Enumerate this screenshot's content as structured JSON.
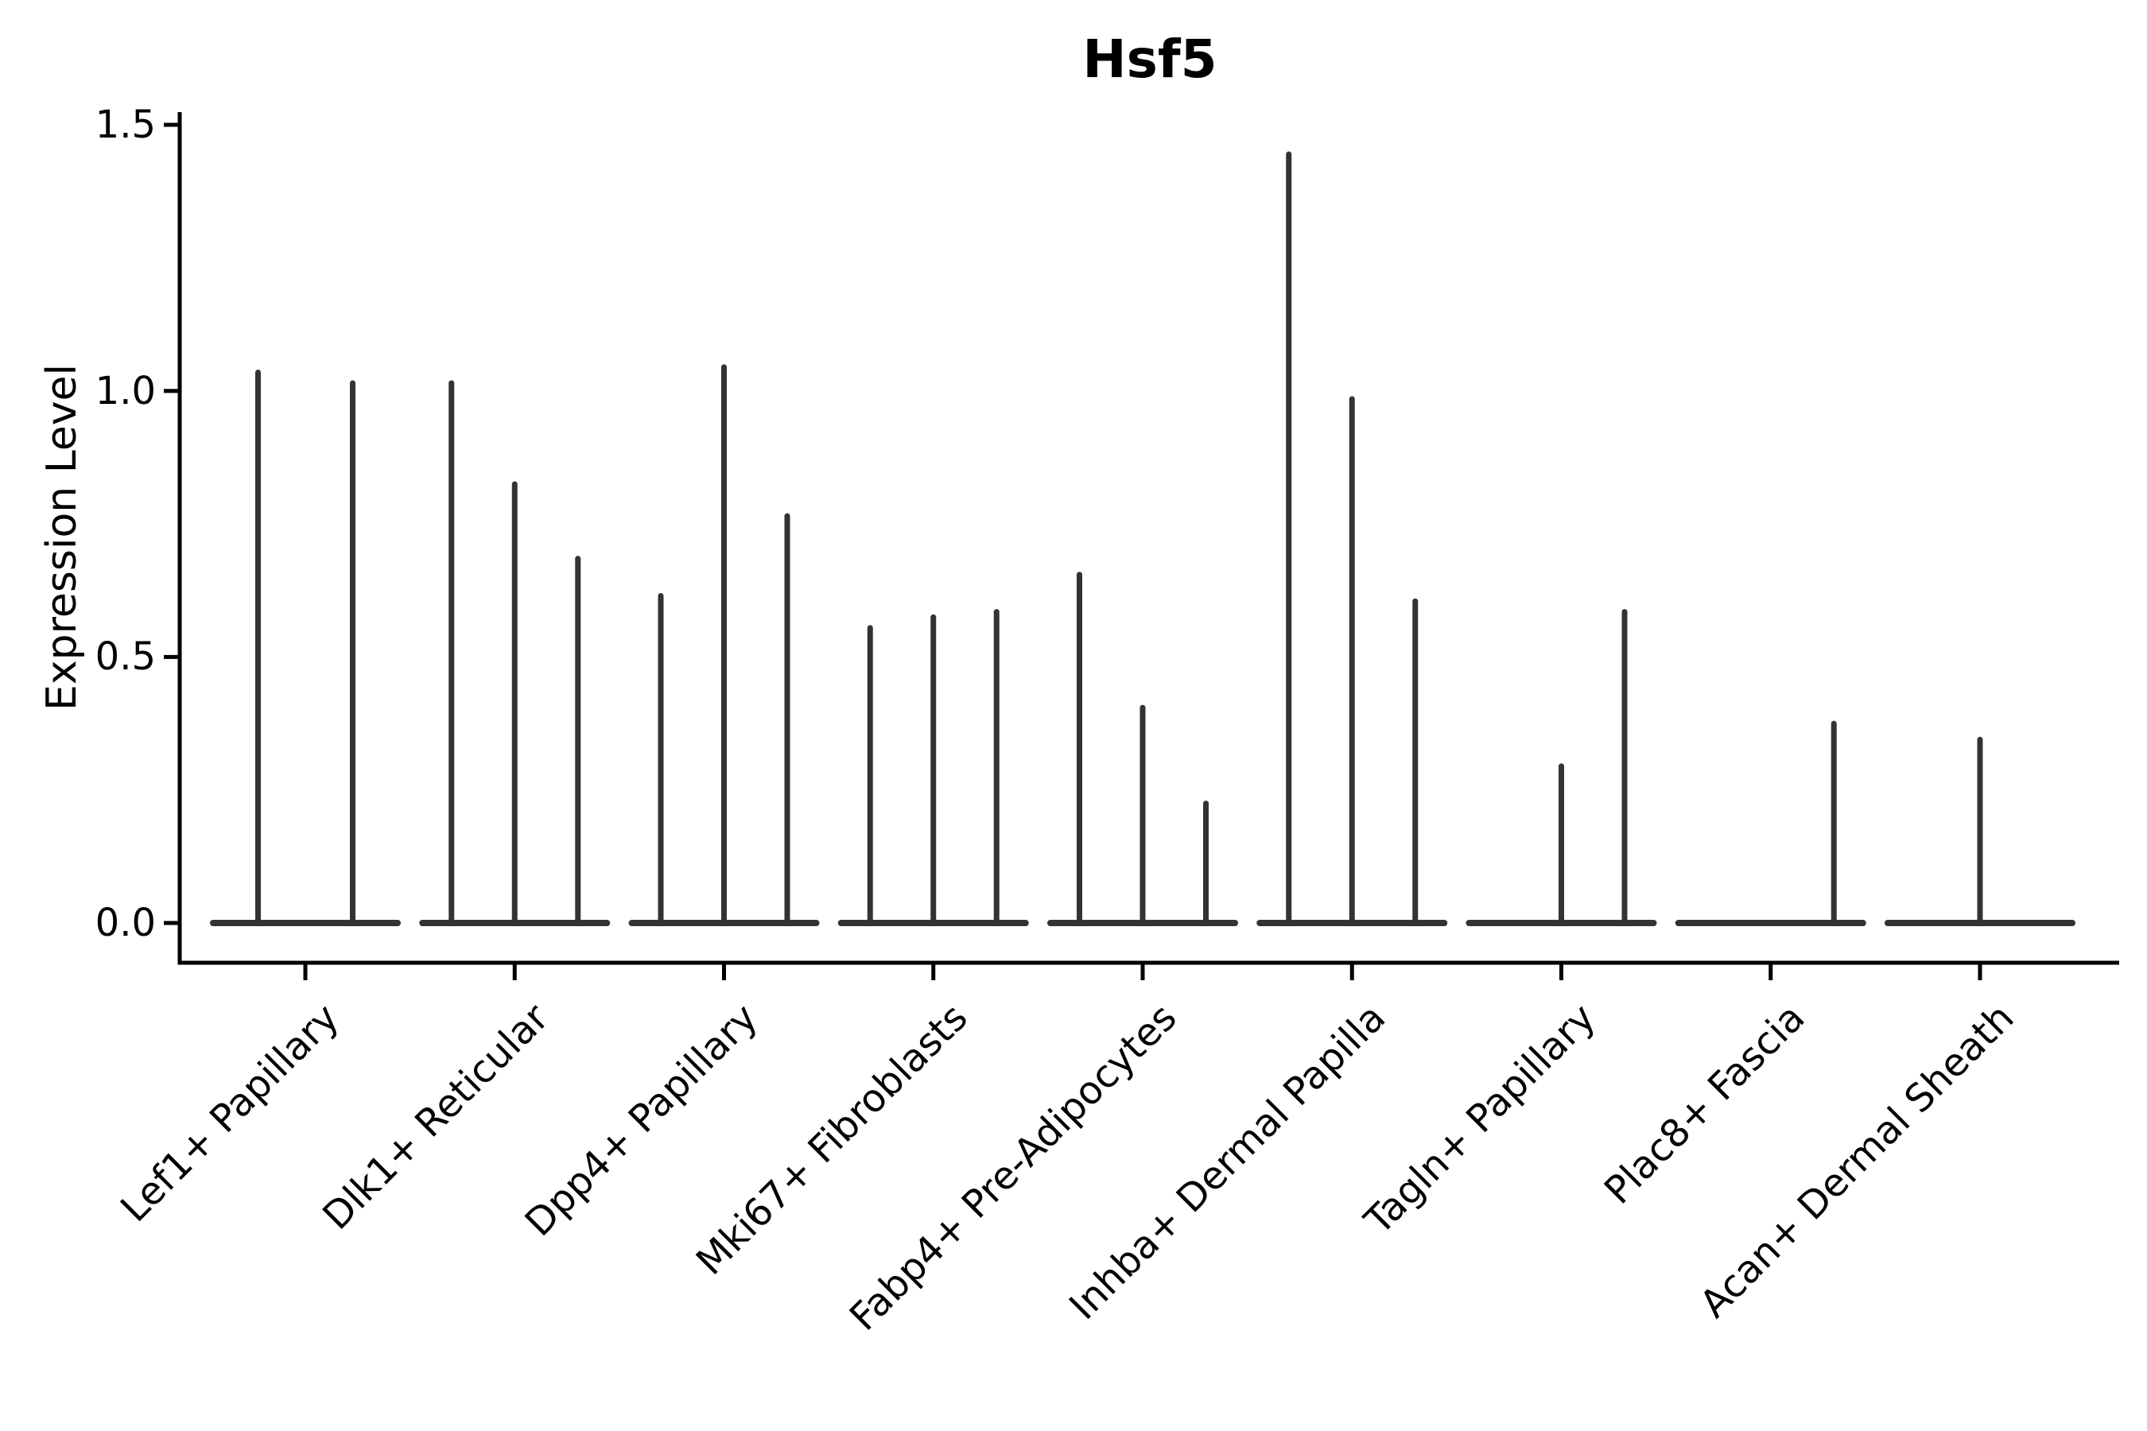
{
  "chart_data": {
    "type": "violin",
    "title": "Hsf5",
    "xlabel": "",
    "ylabel": "Expression Level",
    "ylim": [
      -0.07,
      1.55
    ],
    "yticks": [
      1.5,
      1.0,
      0.5,
      0.0
    ],
    "ytick_labels": [
      "1.5",
      "1.0",
      "0.5",
      "0.0"
    ],
    "grid": false,
    "legend": false,
    "x_label_rotation_deg": 45,
    "groups": [
      {
        "label": "Lef1+ Papillary",
        "violins": [
          1.04,
          1.02
        ]
      },
      {
        "label": "Dlk1+ Reticular",
        "violins": [
          1.02,
          0.83,
          0.69
        ]
      },
      {
        "label": "Dpp4+ Papillary",
        "violins": [
          0.62,
          1.05,
          0.77
        ]
      },
      {
        "label": "Mki67+ Fibroblasts",
        "violins": [
          0.56,
          0.58,
          0.59
        ]
      },
      {
        "label": "Fabp4+ Pre-Adipocytes",
        "violins": [
          0.66,
          0.41,
          0.23
        ]
      },
      {
        "label": "Inhba+ Dermal Papilla",
        "violins": [
          1.45,
          0.99,
          0.61
        ]
      },
      {
        "label": "Tagln+ Papillary",
        "violins": [
          0.0,
          0.3,
          0.59
        ]
      },
      {
        "label": "Plac8+ Fascia",
        "violins": [
          0.0,
          0.0,
          0.38
        ]
      },
      {
        "label": "Acan+ Dermal Sheath",
        "violins": [
          0.0,
          0.35,
          0.0
        ]
      }
    ],
    "colors": {
      "violin": "#333333",
      "axis": "#000000",
      "text": "#000000",
      "background": "#ffffff"
    }
  }
}
